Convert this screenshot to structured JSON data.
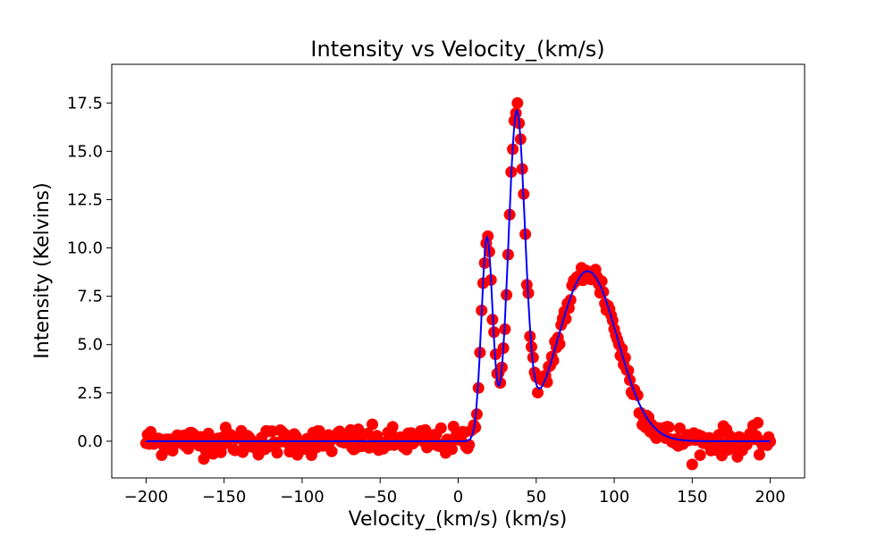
{
  "chart_data": {
    "type": "scatter",
    "title": "Intensity vs Velocity_(km/s)",
    "xlabel": "Velocity_(km/s) (km/s)",
    "ylabel": "Intensity (Kelvins)",
    "xlim": [
      -222,
      222
    ],
    "ylim": [
      -1.9,
      19.5
    ],
    "x_ticks": [
      -200,
      -150,
      -100,
      -50,
      0,
      50,
      100,
      150,
      200
    ],
    "x_tick_labels": [
      "−200",
      "−150",
      "−100",
      "−50",
      "0",
      "50",
      "100",
      "150",
      "200"
    ],
    "y_ticks": [
      0,
      2.5,
      5,
      7.5,
      10,
      12.5,
      15,
      17.5
    ],
    "y_tick_labels": [
      "0.0",
      "2.5",
      "5.0",
      "7.5",
      "10.0",
      "12.5",
      "15.0",
      "17.5"
    ],
    "grid": false,
    "legend": "none",
    "observed": {
      "color": "#ff0000",
      "marker": "circle",
      "x_range": [
        -200,
        200
      ],
      "x_step": 1,
      "noise_rms": 0.35
    },
    "fit": {
      "color": "#0000ff",
      "components": [
        {
          "amplitude": 10.5,
          "center": 18.5,
          "sigma": 3.6
        },
        {
          "amplitude": 16.6,
          "center": 37.5,
          "sigma": 5.3
        },
        {
          "amplitude": 8.8,
          "center": 83.0,
          "sigma": 19.0
        }
      ]
    }
  }
}
